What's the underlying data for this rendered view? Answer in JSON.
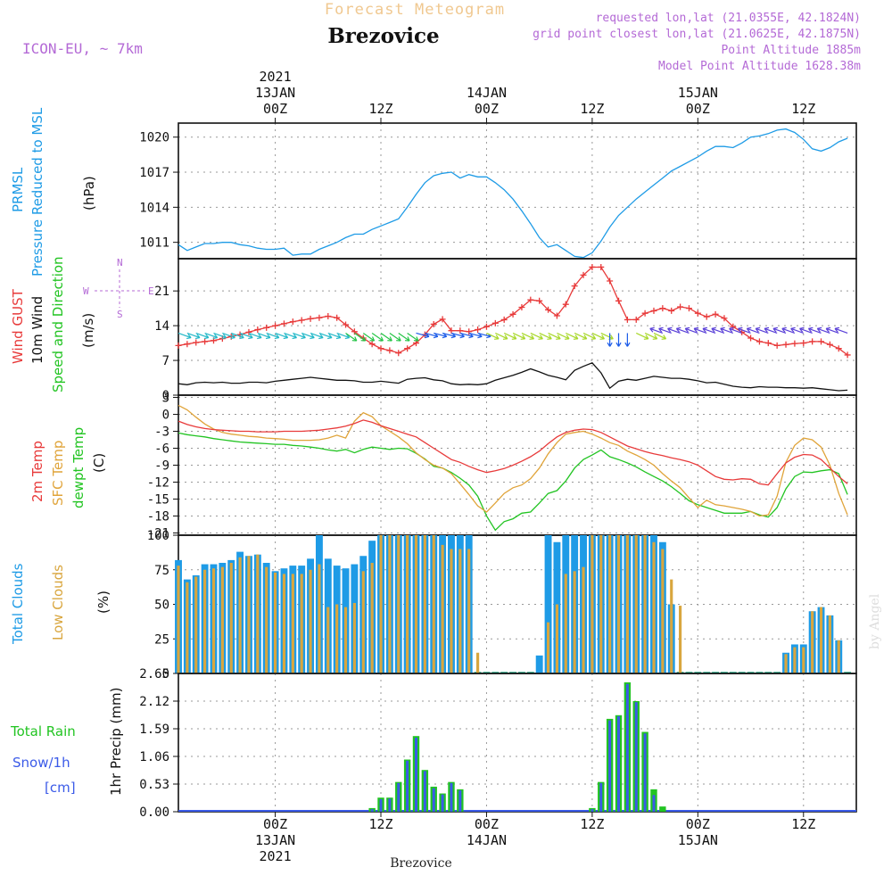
{
  "header": {
    "title_top": "Forecast Meteogram",
    "station": "Brezovice",
    "model": "ICON-EU, ~ 7km",
    "requested": "requested lon,lat (21.0355E, 42.1824N)",
    "gridpoint": "grid point closest lon,lat (21.0625E, 42.1875N)",
    "point_alt": "Point Altitude 1885m",
    "model_alt": "Model Point Altitude 1628.38m",
    "credit": "by Angel",
    "footer": "Brezovice"
  },
  "time_axis": {
    "year": "2021",
    "ticks": [
      {
        "t": 0,
        "hour": "00Z",
        "date": "13JAN",
        "year": "2021"
      },
      {
        "t": 12,
        "hour": "12Z",
        "date": "",
        "year": ""
      },
      {
        "t": 24,
        "hour": "00Z",
        "date": "14JAN",
        "year": ""
      },
      {
        "t": 36,
        "hour": "12Z",
        "date": "",
        "year": ""
      },
      {
        "t": 48,
        "hour": "00Z",
        "date": "15JAN",
        "year": ""
      },
      {
        "t": 60,
        "hour": "12Z",
        "date": "",
        "year": ""
      }
    ],
    "range_hours": [
      -11,
      66
    ]
  },
  "colors": {
    "pressure": "#1e9be6",
    "gust": "#e83a3a",
    "wind": "#111111",
    "temp2m": "#e83a3a",
    "sfc": "#e0a43a",
    "dewpt": "#22c422",
    "total_clouds": "#1e9be6",
    "low_clouds": "#d9a63e",
    "rain": "#22c422",
    "snow": "#3a5ae8",
    "header": "#b46ad6",
    "title_top": "#f0c890"
  },
  "labels": {
    "pressure_title": "PRMSL",
    "pressure_sub": "Pressure Reduced to MSL",
    "pressure_unit": "(hPa)",
    "wind_gust": "Wind GUST",
    "wind_10m": "10m Wind",
    "wind_speed_dir": "Speed and Direction",
    "wind_unit": "(m/s)",
    "compass_n": "N",
    "compass_s": "S",
    "compass_w": "W",
    "compass_e": "E",
    "temp2m": "2m Temp",
    "sfc": "SFC Temp",
    "dewpt": "dewpt Temp",
    "temp_unit": "(C)",
    "total_clouds": "Total Clouds",
    "low_clouds": "Low Clouds",
    "cloud_unit": "(%)",
    "total_rain": "Total  Rain",
    "snow": "Snow/1h",
    "snow_unit": "[cm]",
    "precip_axis": "1hr Precip (mm)"
  },
  "chart_data": [
    {
      "type": "line",
      "name": "pressure",
      "ylabel": "(hPa)",
      "yticks": [
        1011,
        1014,
        1017,
        1020
      ],
      "ylim": [
        1009.6,
        1021.2
      ],
      "x": [
        -11,
        -10,
        -9,
        -8,
        -7,
        -6,
        -5,
        -4,
        -3,
        -2,
        -1,
        0,
        1,
        2,
        3,
        4,
        5,
        6,
        7,
        8,
        9,
        10,
        11,
        12,
        13,
        14,
        15,
        16,
        17,
        18,
        19,
        20,
        21,
        22,
        23,
        24,
        25,
        26,
        27,
        28,
        29,
        30,
        31,
        32,
        33,
        34,
        35,
        36,
        37,
        38,
        39,
        40,
        41,
        42,
        43,
        44,
        45,
        46,
        47,
        48,
        49,
        50,
        51,
        52,
        53,
        54,
        55,
        56,
        57,
        58,
        59,
        60,
        61,
        62,
        63,
        64,
        65
      ],
      "y": [
        1010.8,
        1010.3,
        1010.6,
        1010.9,
        1010.9,
        1011.0,
        1011.0,
        1010.8,
        1010.7,
        1010.5,
        1010.4,
        1010.4,
        1010.5,
        1009.9,
        1010.0,
        1010.0,
        1010.4,
        1010.7,
        1011.0,
        1011.4,
        1011.7,
        1011.7,
        1012.1,
        1012.4,
        1012.7,
        1013.0,
        1014.0,
        1015.1,
        1016.1,
        1016.7,
        1016.9,
        1017.0,
        1016.5,
        1016.8,
        1016.6,
        1016.6,
        1016.1,
        1015.5,
        1014.7,
        1013.7,
        1012.6,
        1011.4,
        1010.6,
        1010.8,
        1010.3,
        1009.8,
        1009.7,
        1010.1,
        1011.1,
        1012.3,
        1013.3,
        1014.0,
        1014.7,
        1015.3,
        1015.9,
        1016.5,
        1017.1,
        1017.5,
        1017.9,
        1018.3,
        1018.8,
        1019.2,
        1019.2,
        1019.1,
        1019.5,
        1020.0,
        1020.1,
        1020.3,
        1020.6,
        1020.7,
        1020.4,
        1019.8,
        1019.0,
        1018.8,
        1019.1,
        1019.6,
        1019.9
      ]
    },
    {
      "type": "line",
      "name": "wind",
      "ylabel": "(m/s)",
      "yticks": [
        0,
        7,
        14,
        21
      ],
      "ylim": [
        0,
        27.5
      ],
      "gust": {
        "x": [
          -11,
          -10,
          -9,
          -8,
          -7,
          -6,
          -5,
          -4,
          -3,
          -2,
          -1,
          0,
          1,
          2,
          3,
          4,
          5,
          6,
          7,
          8,
          9,
          10,
          11,
          12,
          13,
          14,
          15,
          16,
          17,
          18,
          19,
          20,
          21,
          22,
          23,
          24,
          25,
          26,
          27,
          28,
          29,
          30,
          31,
          32,
          33,
          34,
          35,
          36,
          37,
          38,
          39,
          40,
          41,
          42,
          43,
          44,
          45,
          46,
          47,
          48,
          49,
          50,
          51,
          52,
          53,
          54,
          55,
          56,
          57,
          58,
          59,
          60,
          61,
          62,
          63,
          64,
          65
        ],
        "y": [
          10.0,
          10.3,
          10.6,
          10.8,
          11.0,
          11.4,
          11.8,
          12.2,
          12.7,
          13.2,
          13.6,
          14.0,
          14.4,
          14.8,
          15.1,
          15.4,
          15.6,
          15.9,
          15.6,
          14.2,
          12.8,
          11.5,
          10.3,
          9.4,
          9.0,
          8.5,
          9.4,
          10.5,
          12.2,
          14.3,
          15.3,
          13.0,
          13.0,
          12.8,
          13.2,
          13.8,
          14.5,
          15.2,
          16.3,
          17.7,
          19.2,
          19.0,
          17.2,
          16.0,
          18.3,
          22.0,
          24.2,
          25.8,
          25.8,
          23.0,
          19.0,
          15.2,
          15.2,
          16.5,
          17.0,
          17.5,
          17.0,
          17.8,
          17.5,
          16.5,
          15.8,
          16.3,
          15.5,
          13.8,
          12.7,
          11.5,
          10.8,
          10.5,
          10.0,
          10.2,
          10.4,
          10.5,
          10.8,
          10.8,
          10.2,
          9.4,
          8.1
        ]
      },
      "speed": {
        "x": [
          -11,
          -10,
          -9,
          -8,
          -7,
          -6,
          -5,
          -4,
          -3,
          -2,
          -1,
          0,
          1,
          2,
          3,
          4,
          5,
          6,
          7,
          8,
          9,
          10,
          11,
          12,
          13,
          14,
          15,
          16,
          17,
          18,
          19,
          20,
          21,
          22,
          23,
          24,
          25,
          26,
          27,
          28,
          29,
          30,
          31,
          32,
          33,
          34,
          35,
          36,
          37,
          38,
          39,
          40,
          41,
          42,
          43,
          44,
          45,
          46,
          47,
          48,
          49,
          50,
          51,
          52,
          53,
          54,
          55,
          56,
          57,
          58,
          59,
          60,
          61,
          62,
          63,
          64,
          65
        ],
        "y": [
          2.3,
          2.1,
          2.5,
          2.6,
          2.5,
          2.6,
          2.4,
          2.4,
          2.6,
          2.6,
          2.5,
          2.8,
          3.0,
          3.2,
          3.4,
          3.6,
          3.4,
          3.2,
          3.0,
          3.0,
          2.9,
          2.6,
          2.6,
          2.8,
          2.6,
          2.4,
          3.2,
          3.4,
          3.5,
          3.1,
          2.9,
          2.3,
          2.1,
          2.2,
          2.1,
          2.3,
          3.0,
          3.5,
          4.0,
          4.6,
          5.3,
          4.7,
          4.0,
          3.6,
          3.1,
          5.0,
          5.8,
          6.5,
          4.5,
          1.4,
          2.8,
          3.2,
          3.0,
          3.4,
          3.8,
          3.6,
          3.4,
          3.4,
          3.2,
          2.9,
          2.5,
          2.6,
          2.2,
          1.8,
          1.6,
          1.5,
          1.7,
          1.6,
          1.6,
          1.5,
          1.5,
          1.4,
          1.5,
          1.3,
          1.1,
          0.9,
          1.0
        ]
      },
      "barbs_y": 12.5,
      "barb_colors_by_period": [
        "#22b8c8",
        "#22c444",
        "#1a5ae8",
        "#a8d82a",
        "#5a40d8"
      ]
    },
    {
      "type": "line",
      "name": "temperature",
      "ylabel": "(C)",
      "yticks": [
        3,
        0,
        -3,
        -6,
        -9,
        -12,
        -15,
        -18,
        -21
      ],
      "ylim": [
        -21.4,
        3.4
      ],
      "x": [
        -11,
        -10,
        -9,
        -8,
        -7,
        -6,
        -5,
        -4,
        -3,
        -2,
        -1,
        0,
        1,
        2,
        3,
        4,
        5,
        6,
        7,
        8,
        9,
        10,
        11,
        12,
        13,
        14,
        15,
        16,
        17,
        18,
        19,
        20,
        21,
        22,
        23,
        24,
        25,
        26,
        27,
        28,
        29,
        30,
        31,
        32,
        33,
        34,
        35,
        36,
        37,
        38,
        39,
        40,
        41,
        42,
        43,
        44,
        45,
        46,
        47,
        48,
        49,
        50,
        51,
        52,
        53,
        54,
        55,
        56,
        57,
        58,
        59,
        60,
        61,
        62,
        63,
        64,
        65
      ],
      "temp2m": [
        -1.2,
        -1.8,
        -2.2,
        -2.5,
        -2.7,
        -2.8,
        -2.9,
        -3.0,
        -3.0,
        -3.1,
        -3.1,
        -3.1,
        -3.0,
        -3.0,
        -3.0,
        -2.9,
        -2.8,
        -2.6,
        -2.4,
        -2.1,
        -1.6,
        -1.0,
        -1.4,
        -2.0,
        -2.5,
        -3.0,
        -3.5,
        -4.0,
        -5.0,
        -6.0,
        -7.0,
        -8.0,
        -8.5,
        -9.2,
        -9.8,
        -10.3,
        -10.0,
        -9.6,
        -9.0,
        -8.3,
        -7.5,
        -6.5,
        -5.2,
        -4.0,
        -3.2,
        -2.8,
        -2.6,
        -2.7,
        -3.2,
        -4.0,
        -4.8,
        -5.6,
        -6.1,
        -6.6,
        -7.0,
        -7.3,
        -7.7,
        -8.0,
        -8.4,
        -9.0,
        -10.0,
        -11.0,
        -11.5,
        -11.6,
        -11.4,
        -11.5,
        -12.3,
        -12.5,
        -10.5,
        -8.6,
        -7.6,
        -7.1,
        -7.2,
        -8.0,
        -9.5,
        -11.0,
        -12.3
      ],
      "sfc": [
        1.6,
        0.8,
        -0.5,
        -1.7,
        -2.6,
        -3.2,
        -3.5,
        -3.7,
        -3.9,
        -4.0,
        -4.2,
        -4.3,
        -4.4,
        -4.6,
        -4.6,
        -4.6,
        -4.5,
        -4.2,
        -3.7,
        -4.2,
        -1.2,
        0.3,
        -0.4,
        -2.0,
        -3.0,
        -4.0,
        -5.2,
        -6.8,
        -8.0,
        -9.0,
        -9.5,
        -10.5,
        -12.3,
        -14.2,
        -16.2,
        -17.3,
        -15.7,
        -14.0,
        -13.0,
        -12.5,
        -11.4,
        -9.5,
        -7.0,
        -5.0,
        -3.5,
        -3.2,
        -3.0,
        -3.5,
        -4.2,
        -5.0,
        -5.5,
        -6.5,
        -7.2,
        -8.0,
        -9.0,
        -10.5,
        -11.8,
        -13.0,
        -14.8,
        -16.5,
        -15.2,
        -16.0,
        -16.2,
        -16.5,
        -16.8,
        -17.2,
        -18.0,
        -17.8,
        -14.5,
        -8.5,
        -5.5,
        -4.2,
        -4.5,
        -5.8,
        -9.0,
        -14.0,
        -17.8
      ],
      "dewpt": [
        -3.3,
        -3.6,
        -3.8,
        -4.0,
        -4.3,
        -4.5,
        -4.7,
        -4.9,
        -5.0,
        -5.1,
        -5.2,
        -5.3,
        -5.3,
        -5.5,
        -5.6,
        -5.8,
        -6.0,
        -6.3,
        -6.5,
        -6.2,
        -6.8,
        -6.2,
        -5.8,
        -6.0,
        -6.2,
        -6.0,
        -6.1,
        -6.9,
        -7.9,
        -9.2,
        -9.5,
        -10.3,
        -11.3,
        -12.5,
        -14.5,
        -18.0,
        -20.5,
        -19.0,
        -18.5,
        -17.5,
        -17.3,
        -15.7,
        -14.0,
        -13.5,
        -11.8,
        -9.5,
        -8.0,
        -7.2,
        -6.3,
        -7.5,
        -8.0,
        -8.6,
        -9.3,
        -10.2,
        -11.0,
        -11.8,
        -12.8,
        -14.0,
        -15.3,
        -16.0,
        -16.5,
        -17.0,
        -17.5,
        -17.5,
        -17.5,
        -17.2,
        -17.8,
        -18.2,
        -16.5,
        -13.2,
        -11.0,
        -10.2,
        -10.3,
        -10.0,
        -9.8,
        -10.5,
        -14.2
      ]
    },
    {
      "type": "bar",
      "name": "clouds",
      "ylabel": "(%)",
      "yticks": [
        0,
        25,
        50,
        75,
        100
      ],
      "ylim": [
        0,
        100
      ],
      "x": [
        -11,
        -10,
        -9,
        -8,
        -7,
        -6,
        -5,
        -4,
        -3,
        -2,
        -1,
        0,
        1,
        2,
        3,
        4,
        5,
        6,
        7,
        8,
        9,
        10,
        11,
        12,
        13,
        14,
        15,
        16,
        17,
        18,
        19,
        20,
        21,
        22,
        23,
        24,
        25,
        26,
        27,
        28,
        29,
        30,
        31,
        32,
        33,
        34,
        35,
        36,
        37,
        38,
        39,
        40,
        41,
        42,
        43,
        44,
        45,
        46,
        47,
        48,
        49,
        50,
        51,
        52,
        53,
        54,
        55,
        56,
        57,
        58,
        59,
        60,
        61,
        62,
        63,
        64,
        65
      ],
      "total": [
        82,
        68,
        71,
        79,
        79,
        80,
        82,
        88,
        85,
        86,
        80,
        74,
        76,
        78,
        78,
        83,
        100,
        83,
        78,
        76,
        79,
        85,
        96,
        100,
        100,
        100,
        100,
        100,
        100,
        100,
        100,
        100,
        100,
        100,
        0,
        0,
        0,
        0,
        0,
        0,
        0,
        13,
        100,
        95,
        100,
        100,
        100,
        100,
        100,
        100,
        100,
        100,
        100,
        100,
        100,
        95,
        50,
        0,
        0,
        0,
        0,
        0,
        0,
        0,
        0,
        0,
        0,
        0,
        0,
        15,
        21,
        21,
        45,
        48,
        42,
        24,
        0
      ],
      "low": [
        78,
        66,
        70,
        75,
        76,
        77,
        80,
        84,
        85,
        86,
        77,
        73,
        72,
        72,
        72,
        75,
        79,
        48,
        50,
        48,
        51,
        74,
        80,
        100,
        100,
        100,
        100,
        100,
        100,
        100,
        93,
        90,
        90,
        90,
        15,
        0,
        0,
        0,
        0,
        0,
        0,
        0,
        37,
        50,
        72,
        74,
        77,
        100,
        100,
        100,
        100,
        100,
        100,
        100,
        95,
        90,
        68,
        49,
        0,
        0,
        0,
        0,
        0,
        0,
        0,
        0,
        0,
        0,
        0,
        14,
        19,
        19,
        45,
        48,
        42,
        24,
        0
      ]
    },
    {
      "type": "bar",
      "name": "precip",
      "ylabel": "1hr Precip (mm)",
      "yticks": [
        0,
        0.53,
        1.06,
        1.59,
        2.12,
        2.65
      ],
      "ylim": [
        0,
        2.65
      ],
      "x": [
        10,
        11,
        12,
        13,
        14,
        15,
        16,
        17,
        18,
        19,
        20,
        21,
        22,
        23,
        24,
        25,
        26,
        27,
        28,
        29,
        30,
        31,
        32,
        33,
        34,
        35,
        36,
        37,
        38,
        39,
        40,
        41,
        42,
        43,
        44,
        45,
        46
      ],
      "rain": [
        0.0,
        0.07,
        0.27,
        0.27,
        0.57,
        1.0,
        1.45,
        0.8,
        0.48,
        0.35,
        0.57,
        0.43,
        0.0,
        0.0,
        0.0,
        0.0,
        0.0,
        0.0,
        0.0,
        0.0,
        0.0,
        0.0,
        0.0,
        0.0,
        0.0,
        0.0,
        0.07,
        0.57,
        1.78,
        1.85,
        2.48,
        2.12,
        1.53,
        0.43,
        0.1,
        0.0,
        0.0
      ],
      "snow": [
        0.0,
        0.05,
        0.24,
        0.25,
        0.55,
        0.98,
        1.42,
        0.78,
        0.45,
        0.33,
        0.55,
        0.41,
        0.0,
        0.0,
        0.0,
        0.0,
        0.0,
        0.0,
        0.0,
        0.0,
        0.0,
        0.0,
        0.0,
        0.0,
        0.0,
        0.0,
        0.05,
        0.55,
        1.75,
        1.83,
        2.45,
        2.1,
        1.5,
        0.32,
        0.0,
        0.0,
        0.0
      ]
    }
  ]
}
